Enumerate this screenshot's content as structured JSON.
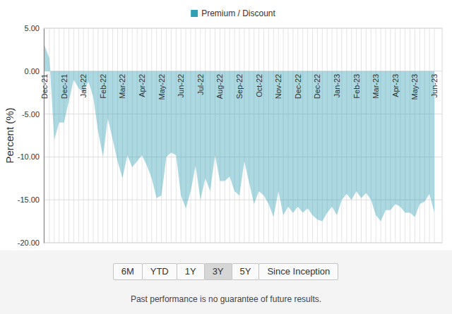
{
  "chart_data": {
    "type": "area",
    "y_label": "Percent (%)",
    "categories": [
      "Dec-21",
      null,
      null,
      null,
      "Dec-21",
      null,
      null,
      null,
      "Jan-22",
      null,
      null,
      null,
      "Feb-22",
      null,
      null,
      null,
      "Mar-22",
      null,
      null,
      null,
      "Apr-22",
      null,
      null,
      null,
      "May-22",
      null,
      null,
      null,
      "Jun-22",
      null,
      null,
      null,
      "Jul-22",
      null,
      null,
      null,
      "Aug-22",
      null,
      null,
      null,
      "Sep-22",
      null,
      null,
      null,
      "Oct-22",
      null,
      null,
      null,
      "Nov-22",
      null,
      null,
      null,
      "Dec-22",
      null,
      null,
      null,
      "Dec-22",
      null,
      null,
      null,
      "Jan-23",
      null,
      null,
      null,
      "Feb-23",
      null,
      null,
      null,
      "Mar-23",
      null,
      null,
      null,
      "Apr-23",
      null,
      null,
      null,
      "May-23",
      null,
      null,
      null,
      "Jun-23"
    ],
    "series": [
      {
        "name": "Premium / Discount",
        "color": "#2f9fb4",
        "values": [
          3.0,
          1.5,
          -8.0,
          -6.0,
          -6.0,
          -3.5,
          -1.0,
          -2.0,
          -2.5,
          -1.2,
          -3.0,
          -7.0,
          -10.0,
          -5.5,
          -8.0,
          -10.5,
          -12.5,
          -9.8,
          -11.2,
          -10.5,
          -9.8,
          -11.0,
          -12.5,
          -14.8,
          -14.5,
          -10.0,
          -9.5,
          -9.8,
          -14.5,
          -16.0,
          -14.0,
          -11.0,
          -15.0,
          -12.5,
          -14.0,
          -9.8,
          -12.8,
          -12.8,
          -12.3,
          -14.0,
          -14.5,
          -10.5,
          -13.0,
          -15.5,
          -14.0,
          -14.5,
          -15.5,
          -17.0,
          -14.0,
          -16.8,
          -15.8,
          -16.5,
          -15.8,
          -16.5,
          -16.0,
          -16.8,
          -17.3,
          -17.5,
          -16.5,
          -15.8,
          -16.8,
          -15.0,
          -14.3,
          -15.0,
          -14.0,
          -14.8,
          -14.2,
          -15.0,
          -16.8,
          -17.5,
          -16.2,
          -16.2,
          -15.5,
          -15.8,
          -16.5,
          -16.5,
          -17.0,
          -15.5,
          -15.2,
          -14.3,
          -16.5
        ]
      }
    ],
    "ylim": [
      -20,
      5
    ],
    "yticks": [
      {
        "value": -20,
        "label": "-20.00"
      },
      {
        "value": -15,
        "label": "-15.00"
      },
      {
        "value": -10,
        "label": "-10.00"
      },
      {
        "value": -5,
        "label": "-5.00"
      },
      {
        "value": 0,
        "label": "0.00"
      },
      {
        "value": 5,
        "label": "5.00"
      }
    ],
    "grid": true,
    "legend": "top"
  },
  "range_buttons": [
    "6M",
    "YTD",
    "1Y",
    "3Y",
    "5Y",
    "Since Inception"
  ],
  "active_range": "3Y",
  "footnote": "Past performance is no guarantee of future results."
}
